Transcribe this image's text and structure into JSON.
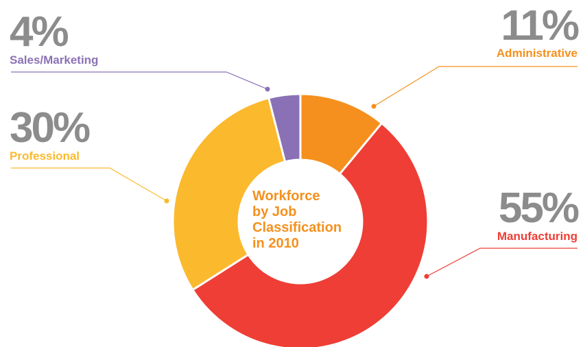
{
  "chart_data": {
    "type": "donut",
    "title": [
      "Workforce",
      "by Job",
      "Classification",
      "in 2010"
    ],
    "categories": [
      "Administrative",
      "Manufacturing",
      "Professional",
      "Sales/Marketing"
    ],
    "values": [
      11,
      55,
      30,
      4
    ],
    "value_labels": [
      "11%",
      "55%",
      "30%",
      "4%"
    ],
    "colors": [
      "#f5901e",
      "#ee3e35",
      "#fbb92e",
      "#8a71b5"
    ]
  }
}
